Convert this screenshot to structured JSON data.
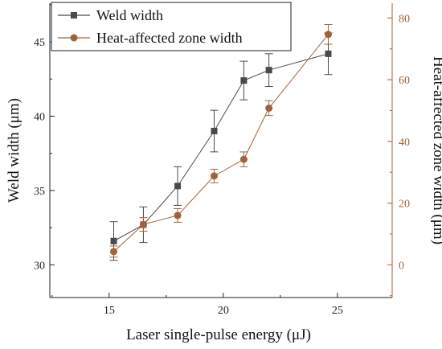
{
  "chart_data": {
    "type": "line",
    "title": "",
    "xlabel": "Laser single-pulse energy (μJ)",
    "ylabel": "Weld width (μm)",
    "y2label": "Heat-affected zone width (μm)",
    "xlim": [
      12.4,
      27.4
    ],
    "ylim": [
      27.8,
      47.6
    ],
    "y2lim": [
      -10.6,
      84.8
    ],
    "xticks": [
      15,
      20,
      25
    ],
    "yticks": [
      30,
      35,
      40,
      45
    ],
    "y2ticks": [
      0,
      20,
      40,
      60,
      80
    ],
    "grid": false,
    "legend_position": "top-left",
    "x": [
      15.2,
      16.5,
      18.0,
      19.6,
      20.9,
      22.0,
      24.6
    ],
    "series": [
      {
        "name": "Weld width",
        "axis": "left",
        "color": "#4a4a4a",
        "marker": "square",
        "values": [
          31.6,
          32.7,
          35.3,
          39.0,
          42.4,
          43.1,
          44.2
        ],
        "errors": [
          1.3,
          1.2,
          1.3,
          1.4,
          1.3,
          1.1,
          1.4
        ]
      },
      {
        "name": "Heat-affected zone width",
        "axis": "right",
        "color": "#a0623a",
        "marker": "circle",
        "values": [
          4.3,
          13.1,
          16.0,
          28.8,
          34.2,
          50.8,
          74.7
        ],
        "errors": [
          1.8,
          2.2,
          2.2,
          2.2,
          2.4,
          2.4,
          3.2
        ]
      }
    ]
  }
}
